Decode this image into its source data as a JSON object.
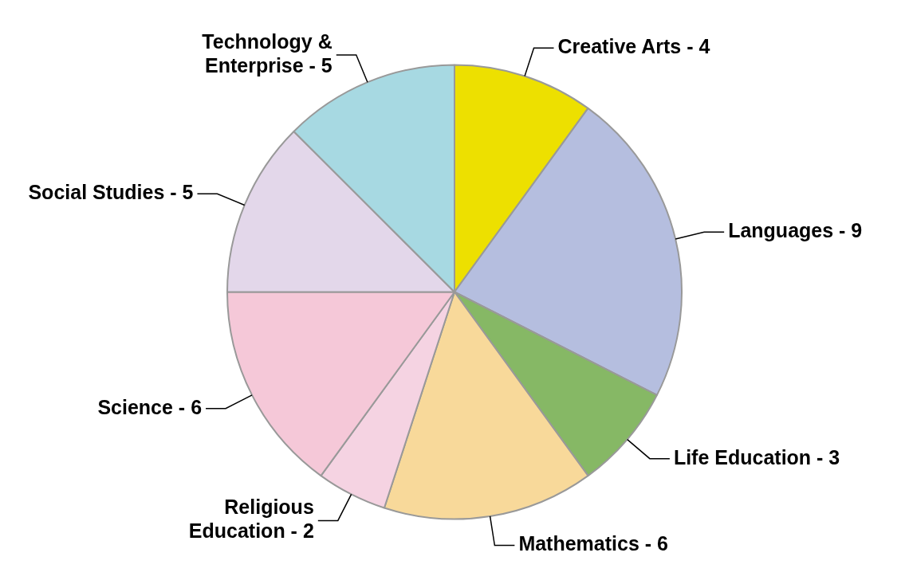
{
  "chart_data": {
    "type": "pie",
    "categories": [
      "Creative Arts - 4",
      "Languages - 9",
      "Life Education - 3",
      "Mathematics - 6",
      "Religious Education - 2",
      "Science - 6",
      "Social Studies - 5",
      "Technology & Enterprise - 5"
    ],
    "values": [
      10,
      22.5,
      7.5,
      15,
      5,
      15,
      12.5,
      12.5
    ],
    "colors": [
      "#ede000",
      "#b5bedf",
      "#86b865",
      "#f8d99a",
      "#f5d3e2",
      "#f5c8d8",
      "#e3d7ea",
      "#a7d9e2"
    ],
    "legend": false
  }
}
